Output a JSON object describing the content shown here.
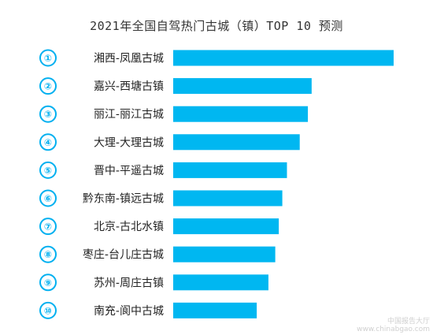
{
  "chart_data": {
    "type": "bar",
    "orientation": "horizontal",
    "title": "2021年全国自驾热门古城（镇）TOP 10 预测",
    "categories": [
      "湘西-凤凰古城",
      "嘉兴-西塘古镇",
      "丽江-丽江古城",
      "大理-大理古城",
      "晋中-平遥古城",
      "黔东南-镇远古城",
      "北京-古北水镇",
      "枣庄-台儿庄古城",
      "苏州-周庄古镇",
      "南充-阆中古城"
    ],
    "ranks": [
      "①",
      "②",
      "③",
      "④",
      "⑤",
      "⑥",
      "⑦",
      "⑧",
      "⑨",
      "⑩"
    ],
    "values": [
      100,
      62.8,
      61.1,
      57.4,
      51.6,
      49.5,
      47.9,
      46.3,
      43.2,
      37.9
    ],
    "xlim": [
      0,
      100
    ],
    "grid": false,
    "legend": "none",
    "bar_color": "#00b7f1",
    "rank_color": "#00b0f0"
  },
  "watermark": {
    "line1": "中国报告大厅",
    "line2": "www.chinabgao.com"
  }
}
